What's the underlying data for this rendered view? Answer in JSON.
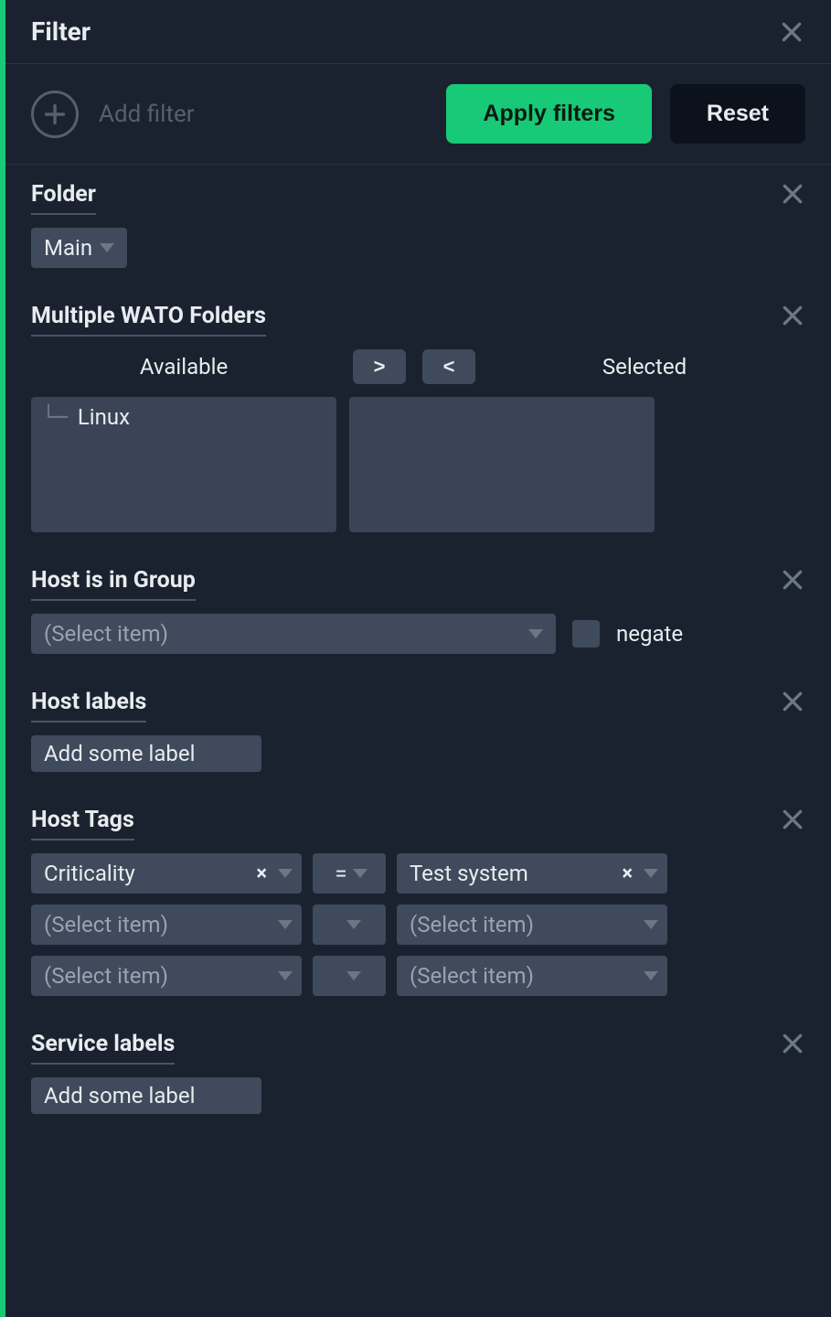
{
  "colors": {
    "panel_bg": "#1a2230",
    "accent": "#18c977",
    "border": "#2b3444",
    "text": "#e8ecef",
    "muted": "#575f6b",
    "muted2": "#6d7682",
    "chip_bg": "#3f4a5c",
    "chip_bg_dark": "#323c4c",
    "listbox_bg": "#3a4456",
    "btn_dark_bg": "#0c121c",
    "section_x": "#6d7885",
    "close_x": "#6d7885",
    "placeholder": "#9aa3ae",
    "title_underline": "#4a5568"
  },
  "header": {
    "title": "Filter"
  },
  "toolbar": {
    "add_label": "Add filter",
    "apply_label": "Apply filters",
    "reset_label": "Reset"
  },
  "sections": {
    "folder": {
      "title": "Folder",
      "value": "Main"
    },
    "multi_folders": {
      "title": "Multiple WATO Folders",
      "available_label": "Available",
      "selected_label": "Selected",
      "move_right": ">",
      "move_left": "<",
      "available_items": [
        {
          "indent": "└─",
          "label": "Linux"
        }
      ],
      "selected_items": []
    },
    "host_group": {
      "title": "Host is in Group",
      "placeholder": "(Select item)",
      "negate_label": "negate"
    },
    "host_labels": {
      "title": "Host labels",
      "placeholder": "Add some label"
    },
    "host_tags": {
      "title": "Host Tags",
      "rows": [
        {
          "key": "Criticality",
          "key_clear": true,
          "op": "=",
          "val": "Test system",
          "val_clear": true
        },
        {
          "key": "(Select item)",
          "key_clear": false,
          "op": "",
          "val": "(Select item)",
          "val_clear": false
        },
        {
          "key": "(Select item)",
          "key_clear": false,
          "op": "",
          "val": "(Select item)",
          "val_clear": false
        }
      ]
    },
    "service_labels": {
      "title": "Service labels",
      "placeholder": "Add some label"
    }
  }
}
